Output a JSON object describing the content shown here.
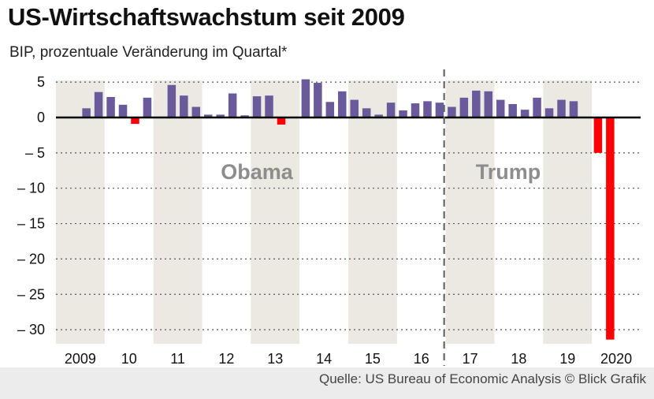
{
  "title": "US-Wirtschaftswachstum seit 2009",
  "subtitle": "BIP, prozentuale Veränderung im Quartal*",
  "source": "Quelle: US Bureau of Economic Analysis  © Blick Grafik",
  "colors": {
    "positive": "#6a5a9c",
    "negative": "#ff0000",
    "band": "#ece9e2",
    "grid": "#555555",
    "background": "#ffffff"
  },
  "chart_data": {
    "type": "bar",
    "ylim": [
      -31.4,
      6
    ],
    "yticks": [
      5,
      0,
      -5,
      -10,
      -15,
      -20,
      -25,
      -30
    ],
    "ytick_labels": [
      "5",
      "0",
      "– 5",
      "– 10",
      "– 15",
      "– 20",
      "– 25",
      "– 30"
    ],
    "grid": true,
    "years": [
      "2009",
      "10",
      "11",
      "12",
      "13",
      "14",
      "15",
      "16",
      "17",
      "18",
      "19",
      "2020"
    ],
    "shaded_years": [
      "2009",
      "11",
      "13",
      "15",
      "17",
      "19"
    ],
    "presidents": [
      {
        "name": "Obama",
        "from_quarter_index": 0
      },
      {
        "name": "Trump",
        "from_quarter_index": 32
      }
    ],
    "divider_after_quarter_index": 31,
    "quarters": [
      "2009 Q1",
      "2009 Q2",
      "2009 Q3",
      "2009 Q4",
      "2010 Q1",
      "2010 Q2",
      "2010 Q3",
      "2010 Q4",
      "2011 Q1",
      "2011 Q2",
      "2011 Q3",
      "2011 Q4",
      "2012 Q1",
      "2012 Q2",
      "2012 Q3",
      "2012 Q4",
      "2013 Q1",
      "2013 Q2",
      "2013 Q3",
      "2013 Q4",
      "2014 Q1",
      "2014 Q2",
      "2014 Q3",
      "2014 Q4",
      "2015 Q1",
      "2015 Q2",
      "2015 Q3",
      "2015 Q4",
      "2016 Q1",
      "2016 Q2",
      "2016 Q3",
      "2016 Q4",
      "2017 Q1",
      "2017 Q2",
      "2017 Q3",
      "2017 Q4",
      "2018 Q1",
      "2018 Q2",
      "2018 Q3",
      "2018 Q4",
      "2019 Q1",
      "2019 Q2",
      "2019 Q3",
      "2019 Q4",
      "2020 Q1",
      "2020 Q2"
    ],
    "values": [
      null,
      null,
      1.3,
      3.6,
      2.9,
      1.8,
      -0.9,
      2.8,
      null,
      4.6,
      3.1,
      1.5,
      0.4,
      0.4,
      3.4,
      0.3,
      3.0,
      3.1,
      -1.0,
      0.1,
      5.4,
      4.9,
      2.2,
      3.7,
      2.5,
      1.3,
      0.4,
      2.1,
      1.0,
      2.0,
      2.3,
      2.1,
      1.5,
      2.8,
      3.8,
      3.7,
      2.5,
      1.9,
      1.1,
      2.8,
      1.3,
      2.5,
      2.3,
      null,
      -5.0,
      -31.4
    ]
  }
}
